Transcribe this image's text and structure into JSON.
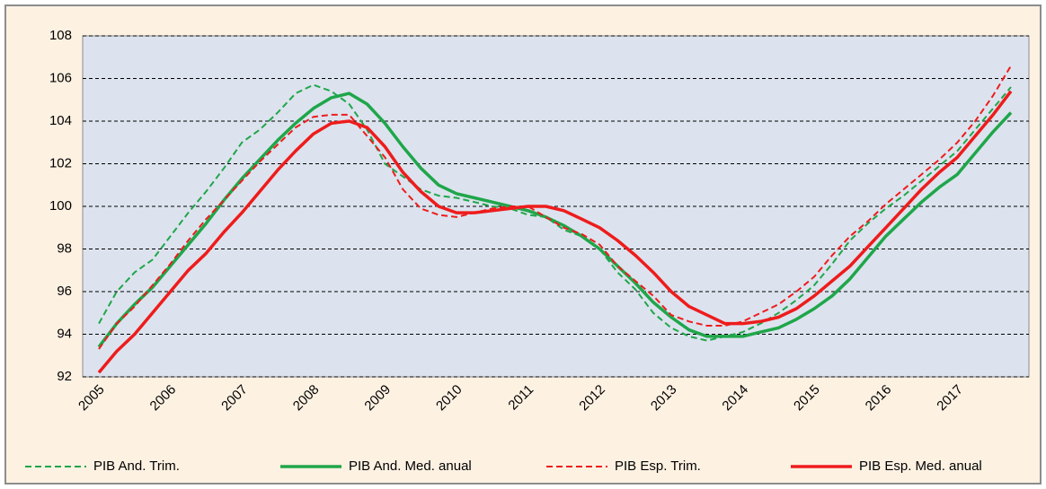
{
  "chart_data": {
    "type": "line",
    "x": [
      "2005",
      null,
      null,
      null,
      "2006",
      null,
      null,
      null,
      "2007",
      null,
      null,
      null,
      "2008",
      null,
      null,
      null,
      "2009",
      null,
      null,
      null,
      "2010",
      null,
      null,
      null,
      "2011",
      null,
      null,
      null,
      "2012",
      null,
      null,
      null,
      "2013",
      null,
      null,
      null,
      "2014",
      null,
      null,
      null,
      "2015",
      null,
      null,
      null,
      "2016",
      null,
      null,
      null,
      "2017",
      null,
      null,
      null
    ],
    "series": [
      {
        "name": "PIB And. Trim.",
        "color": "#1fa64a",
        "dashed": true,
        "values": [
          94.5,
          96.0,
          96.9,
          97.5,
          98.6,
          99.7,
          100.7,
          101.8,
          103.0,
          103.6,
          104.4,
          105.3,
          105.7,
          105.4,
          104.8,
          103.6,
          102.0,
          101.4,
          100.8,
          100.5,
          100.4,
          100.2,
          100.0,
          99.9,
          99.6,
          99.5,
          98.9,
          98.6,
          98.0,
          96.9,
          96.1,
          95.0,
          94.3,
          93.9,
          93.7,
          93.9,
          94.1,
          94.5,
          95.0,
          95.6,
          96.3,
          97.3,
          98.4,
          99.2,
          99.9,
          100.5,
          101.2,
          101.9,
          102.6,
          103.6,
          104.6,
          105.6
        ]
      },
      {
        "name": "PIB And. Med. anual",
        "color": "#1fa64a",
        "dashed": false,
        "values": [
          93.4,
          94.5,
          95.4,
          96.2,
          97.2,
          98.2,
          99.2,
          100.3,
          101.3,
          102.2,
          103.1,
          103.9,
          104.6,
          105.1,
          105.3,
          104.8,
          103.9,
          102.8,
          101.8,
          101.0,
          100.6,
          100.4,
          100.2,
          100.0,
          99.8,
          99.5,
          99.1,
          98.6,
          98.0,
          97.2,
          96.4,
          95.5,
          94.8,
          94.2,
          93.9,
          93.9,
          93.9,
          94.1,
          94.3,
          94.7,
          95.2,
          95.8,
          96.6,
          97.6,
          98.6,
          99.4,
          100.2,
          100.9,
          101.5,
          102.5,
          103.5,
          104.4
        ]
      },
      {
        "name": "PIB Esp. Trim.",
        "color": "#ee1c1c",
        "dashed": true,
        "values": [
          93.3,
          94.5,
          95.3,
          96.3,
          97.3,
          98.4,
          99.4,
          100.3,
          101.2,
          102.1,
          102.9,
          103.7,
          104.2,
          104.3,
          104.3,
          103.3,
          102.3,
          100.8,
          99.9,
          99.6,
          99.5,
          99.7,
          99.9,
          100.0,
          100.0,
          99.5,
          99.0,
          98.7,
          98.2,
          97.2,
          96.5,
          95.8,
          94.9,
          94.6,
          94.4,
          94.4,
          94.6,
          95.0,
          95.4,
          96.0,
          96.7,
          97.7,
          98.6,
          99.3,
          100.1,
          100.8,
          101.5,
          102.2,
          103.0,
          104.0,
          105.2,
          106.6
        ]
      },
      {
        "name": "PIB Esp. Med. anual",
        "color": "#ee1c1c",
        "dashed": false,
        "values": [
          92.2,
          93.2,
          94.0,
          95.0,
          96.0,
          97.0,
          97.8,
          98.8,
          99.7,
          100.7,
          101.7,
          102.6,
          103.4,
          103.9,
          104.0,
          103.7,
          102.8,
          101.6,
          100.7,
          100.0,
          99.7,
          99.7,
          99.8,
          99.9,
          100.0,
          100.0,
          99.8,
          99.4,
          99.0,
          98.4,
          97.7,
          96.9,
          96.0,
          95.3,
          94.9,
          94.5,
          94.5,
          94.6,
          94.8,
          95.2,
          95.8,
          96.5,
          97.2,
          98.1,
          99.0,
          99.9,
          100.8,
          101.6,
          102.3,
          103.3,
          104.3,
          105.4
        ]
      }
    ],
    "ylim": [
      92,
      108
    ],
    "yticks": [
      92,
      94,
      96,
      98,
      100,
      102,
      104,
      106,
      108
    ],
    "grid": true
  }
}
